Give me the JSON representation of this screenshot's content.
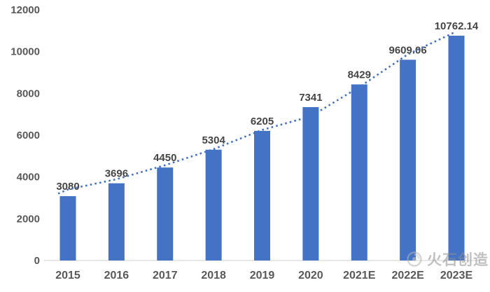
{
  "watermark": {
    "text": "火石创造"
  },
  "chart_data": {
    "type": "bar",
    "title": "",
    "xlabel": "",
    "ylabel": "",
    "categories": [
      "2015",
      "2016",
      "2017",
      "2018",
      "2019",
      "2020",
      "2021E",
      "2022E",
      "2023E"
    ],
    "values": [
      3080,
      3696,
      4450,
      5304,
      6205,
      7341,
      8429,
      9609.06,
      10762.14
    ],
    "value_labels": [
      "3080",
      "3696",
      "4450",
      "5304",
      "6205",
      "7341",
      "8429",
      "9609.06",
      "10762.14"
    ],
    "trendline": {
      "style": "dotted",
      "values": [
        3400,
        3890,
        4560,
        5330,
        6250,
        6900,
        8300,
        9870,
        10900
      ]
    },
    "ylim": [
      0,
      12000
    ],
    "y_ticks": [
      0,
      2000,
      4000,
      6000,
      8000,
      10000,
      12000
    ],
    "grid": false,
    "legend": false,
    "colors": {
      "bar": "#4472C4",
      "trendline": "#4472C4",
      "axis_line": "#D9D9D9",
      "tick_label": "#595959",
      "value_label": "#454545",
      "watermark": "#8f8f8f"
    }
  }
}
